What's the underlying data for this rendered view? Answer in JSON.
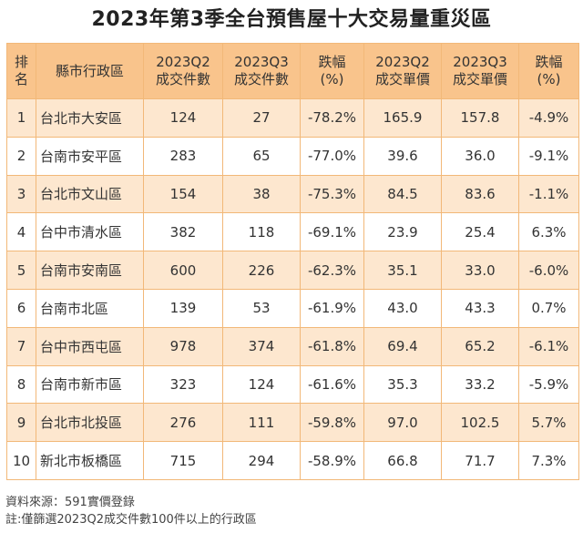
{
  "title": "2023年第3季全台預售屋十大交易量重災區",
  "chart_data": {
    "type": "table",
    "title": "2023年第3季全台預售屋十大交易量重災區",
    "columns": [
      [
        "排",
        "名"
      ],
      [
        "縣市行政區",
        ""
      ],
      [
        "2023Q2",
        "成交件數"
      ],
      [
        "2023Q3",
        "成交件數"
      ],
      [
        "跌幅",
        "(%)"
      ],
      [
        "2023Q2",
        "成交單價"
      ],
      [
        "2023Q3",
        "成交單價"
      ],
      [
        "跌幅",
        "(%)"
      ]
    ],
    "rows": [
      [
        "1",
        "台北市大安區",
        "124",
        "27",
        "-78.2%",
        "165.9",
        "157.8",
        "-4.9%"
      ],
      [
        "2",
        "台南市安平區",
        "283",
        "65",
        "-77.0%",
        "39.6",
        "36.0",
        "-9.1%"
      ],
      [
        "3",
        "台北市文山區",
        "154",
        "38",
        "-75.3%",
        "84.5",
        "83.6",
        "-1.1%"
      ],
      [
        "4",
        "台中市清水區",
        "382",
        "118",
        "-69.1%",
        "23.9",
        "25.4",
        "6.3%"
      ],
      [
        "5",
        "台南市安南區",
        "600",
        "226",
        "-62.3%",
        "35.1",
        "33.0",
        "-6.0%"
      ],
      [
        "6",
        "台南市北區",
        "139",
        "53",
        "-61.9%",
        "43.0",
        "43.3",
        "0.7%"
      ],
      [
        "7",
        "台中市西屯區",
        "978",
        "374",
        "-61.8%",
        "69.4",
        "65.2",
        "-6.1%"
      ],
      [
        "8",
        "台南市新市區",
        "323",
        "124",
        "-61.6%",
        "35.3",
        "33.2",
        "-5.9%"
      ],
      [
        "9",
        "台北市北投區",
        "276",
        "111",
        "-59.8%",
        "97.0",
        "102.5",
        "5.7%"
      ],
      [
        "10",
        "新北市板橋區",
        "715",
        "294",
        "-58.9%",
        "66.8",
        "71.7",
        "7.3%"
      ]
    ]
  },
  "footer": {
    "source": "資料來源：591實價登錄",
    "note": "註:僅篩選2023Q2成交件數100件以上的行政區"
  },
  "colors": {
    "header": "#f9c48c",
    "stripe": "#fde7cf",
    "border": "#f2b878"
  }
}
